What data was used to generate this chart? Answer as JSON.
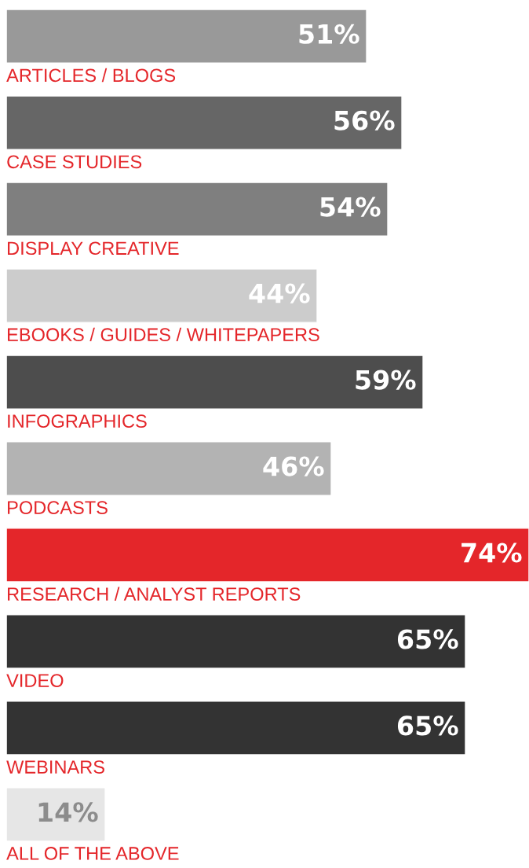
{
  "chart_data": {
    "type": "bar",
    "orientation": "horizontal",
    "categories": [
      "ARTICLES / BLOGS",
      "CASE STUDIES",
      "DISPLAY CREATIVE",
      "EBOOKS / GUIDES / WHITEPAPERS",
      "INFOGRAPHICS",
      "PODCASTS",
      "RESEARCH / ANALYST REPORTS",
      "VIDEO",
      "WEBINARS",
      "ALL OF THE ABOVE"
    ],
    "values": [
      51,
      56,
      54,
      44,
      59,
      46,
      74,
      65,
      65,
      14
    ],
    "colors": [
      "#999999",
      "#666666",
      "#7f7f7f",
      "#cccccc",
      "#4d4d4d",
      "#b3b3b3",
      "#e4262a",
      "#333333",
      "#333333",
      "#e6e6e6"
    ],
    "value_labels": [
      "51%",
      "56%",
      "54%",
      "44%",
      "59%",
      "46%",
      "74%",
      "65%",
      "65%",
      "14%"
    ],
    "legend": false
  }
}
